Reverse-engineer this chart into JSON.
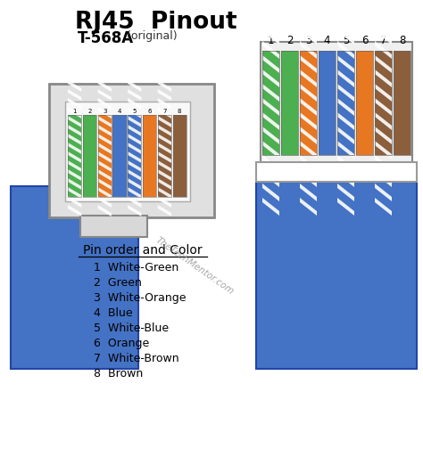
{
  "title": "RJ45  Pinout",
  "subtitle": "T-568A",
  "subtitle_suffix": " (original)",
  "bg_color": "#ffffff",
  "pin_labels": [
    "1",
    "2",
    "3",
    "4",
    "5",
    "6",
    "7",
    "8"
  ],
  "pin_order_title": "Pin order and Color",
  "pin_colors_text": [
    "1  White-Green",
    "2  Green",
    "3  White-Orange",
    "4  Blue",
    "5  White-Blue",
    "6  Orange",
    "7  White-Brown",
    "8  Brown"
  ],
  "wire_main_colors": [
    "#4CAF50",
    "#4CAF50",
    "#E87722",
    "#4472C4",
    "#4472C4",
    "#E87722",
    "#8B5E3C",
    "#8B5E3C"
  ],
  "wire_is_striped": [
    true,
    false,
    true,
    false,
    true,
    false,
    true,
    false
  ],
  "cable_color": "#4472C4",
  "connector_color": "#d0d0d0",
  "watermark": "TheTechMentor.com"
}
